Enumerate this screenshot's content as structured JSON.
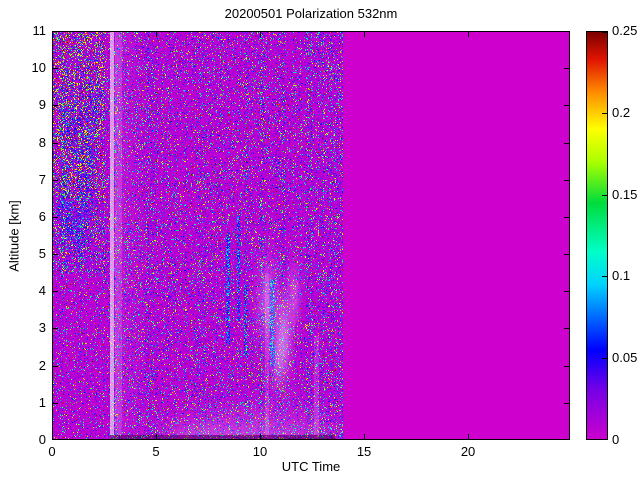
{
  "chart_data": {
    "type": "heatmap",
    "title": "20200501 Polarization 532nm",
    "xlabel": "UTC Time",
    "ylabel": "Altitude [km]",
    "x_range": [
      0,
      24.9
    ],
    "y_range": [
      0,
      11
    ],
    "x_ticks": [
      0,
      5,
      10,
      15,
      20
    ],
    "x_tick_labels": [
      "0",
      "5",
      "10",
      "15",
      "20"
    ],
    "y_ticks": [
      0,
      1,
      2,
      3,
      4,
      5,
      6,
      7,
      8,
      9,
      10,
      11
    ],
    "y_tick_labels": [
      "0",
      "1",
      "2",
      "3",
      "4",
      "5",
      "6",
      "7",
      "8",
      "9",
      "10",
      "11"
    ],
    "colorbar": {
      "min": 0,
      "max": 0.25,
      "ticks": [
        0,
        0.05,
        0.1,
        0.15,
        0.2,
        0.25
      ],
      "tick_labels": [
        "0",
        "0.05",
        "0.1",
        "0.15",
        "0.2",
        "0.25"
      ]
    },
    "value_range": [
      0,
      0.25
    ],
    "background_value": 0,
    "data_time_extent": [
      0,
      14
    ],
    "colormap_stops": [
      [
        0.0,
        [
          205,
          0,
          205
        ]
      ],
      [
        0.12,
        [
          120,
          0,
          230
        ]
      ],
      [
        0.22,
        [
          0,
          0,
          255
        ]
      ],
      [
        0.38,
        [
          0,
          210,
          255
        ]
      ],
      [
        0.46,
        [
          0,
          255,
          200
        ]
      ],
      [
        0.58,
        [
          0,
          220,
          60
        ]
      ],
      [
        0.68,
        [
          170,
          255,
          0
        ]
      ],
      [
        0.76,
        [
          255,
          255,
          0
        ]
      ],
      [
        0.85,
        [
          255,
          140,
          0
        ]
      ],
      [
        0.93,
        [
          225,
          20,
          0
        ]
      ],
      [
        1.0,
        [
          120,
          0,
          0
        ]
      ]
    ],
    "noise": {
      "background_v_max": 0.012,
      "speckle_prob": 0.3,
      "speckle_exponent": 3.5,
      "speckle_v_min": 0.012,
      "speckle_v_span": 0.238,
      "light_fleck_prob": 0.08,
      "light_fleck_mix": 0.12,
      "left_region_t_max": 2.7,
      "left_high_alt_threshold": 4.5,
      "left_high_alt_factor": 1.6,
      "left_low_alt_factor": 0.7,
      "column_factor_base": 0.5,
      "column_factor_span": 1.1,
      "bright_column_prob": 0.08,
      "bright_column_boost": 1.8
    },
    "features": {
      "bright_stripe": {
        "t0": 2.78,
        "t1": 2.99,
        "white_mix": 0.55
      },
      "secondary_stripe": {
        "t0": 3.02,
        "t1": 3.35,
        "white_mix": 0.16
      },
      "band": {
        "t0": 2.99,
        "t1": 4.6,
        "white_mix": 0.09
      },
      "bottom_dark_line": {
        "t0": 2.8,
        "t1": 13.6,
        "a_max": 0.14,
        "dark_mix": 0.38
      },
      "dark_cluster": {
        "t_max": 2.5,
        "a_min": 6.5,
        "prob": 0.11,
        "v_lo": 0.15,
        "v_hi": 0.25
      },
      "blue_blobs": [
        {
          "t": 0.9,
          "a": 8.3,
          "rt": 0.5,
          "ra": 1.2
        },
        {
          "t": 1.6,
          "a": 7.2,
          "rt": 0.4,
          "ra": 1.0
        },
        {
          "t": 0.6,
          "a": 6.3,
          "rt": 0.3,
          "ra": 0.8
        },
        {
          "t": 1.9,
          "a": 8.8,
          "rt": 0.35,
          "ra": 0.9
        },
        {
          "t": 1.2,
          "a": 5.6,
          "rt": 0.4,
          "ra": 0.7
        }
      ],
      "cyan_streaks": [
        {
          "t": 8.45,
          "a0": 2.6,
          "a1": 5.6,
          "w": 0.1
        },
        {
          "t": 8.95,
          "a0": 3.2,
          "a1": 6.1,
          "w": 0.08
        },
        {
          "t": 9.3,
          "a0": 2.3,
          "a1": 4.2,
          "w": 0.07
        },
        {
          "t": 10.6,
          "a0": 2.0,
          "a1": 4.3,
          "w": 0.12
        }
      ],
      "pink_blobs": [
        {
          "t": 10.35,
          "a": 3.7,
          "rt": 0.5,
          "ra": 1.1,
          "s": 0.28
        },
        {
          "t": 11.15,
          "a": 2.9,
          "rt": 0.35,
          "ra": 0.9,
          "s": 0.33
        },
        {
          "t": 11.65,
          "a": 3.9,
          "rt": 0.3,
          "ra": 0.8,
          "s": 0.24
        },
        {
          "t": 10.9,
          "a": 2.1,
          "rt": 0.4,
          "ra": 0.7,
          "s": 0.24
        },
        {
          "t": 10.0,
          "a": 0.0,
          "rt": 3.5,
          "ra": 0.8,
          "s": 0.22
        },
        {
          "t": 7.0,
          "a": 0.0,
          "rt": 1.5,
          "ra": 0.45,
          "s": 0.15
        }
      ],
      "pink_streaks": [
        {
          "t0": 12.6,
          "t1": 12.85,
          "a_max": 2.8,
          "white_mix": 0.15
        },
        {
          "t0": 10.25,
          "t1": 10.45,
          "a_max": 4.5,
          "white_mix": 0.12
        }
      ]
    },
    "seed": 42
  }
}
